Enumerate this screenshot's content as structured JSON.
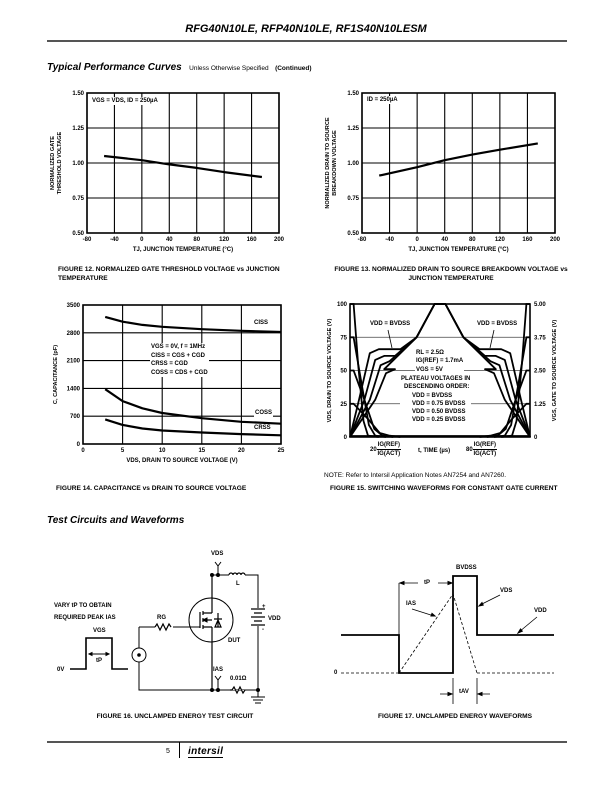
{
  "header": {
    "title": "RFG40N10LE, RFP40N10LE, RF1S40N10LESM"
  },
  "section1": {
    "title": "Typical Performance Curves",
    "subtitle": "Unless Otherwise Specified",
    "continued": "(Continued)"
  },
  "chart_data": [
    {
      "type": "line",
      "caption": "FIGURE 12.  NORMALIZED GATE THRESHOLD VOLTAGE vs JUNCTION TEMPERATURE",
      "xlabel": "TJ, JUNCTION TEMPERATURE (°C)",
      "ylabel_lines": [
        "NORMALIZED GATE",
        "THRESHOLD VOLTAGE"
      ],
      "xlim": [
        -80,
        200
      ],
      "ylim": [
        0.5,
        1.5
      ],
      "xticks": [
        -80,
        -40,
        0,
        40,
        80,
        120,
        160,
        200
      ],
      "yticks": [
        0.5,
        0.75,
        1.0,
        1.25,
        1.5
      ],
      "ytick_labels": [
        "0.50",
        "0.75",
        "1.00",
        "1.25",
        "1.50"
      ],
      "grid": true,
      "annotation": "VGS = VDS, ID = 250µA",
      "series": [
        {
          "x": [
            -55,
            0,
            40,
            80,
            120,
            175
          ],
          "y": [
            1.05,
            1.02,
            0.99,
            0.965,
            0.935,
            0.9
          ]
        }
      ]
    },
    {
      "type": "line",
      "caption": "FIGURE 13.  NORMALIZED DRAIN TO SOURCE BREAKDOWN VOLTAGE vs JUNCTION TEMPERATURE",
      "xlabel": "TJ, JUNCTION TEMPERATURE (°C)",
      "ylabel_lines": [
        "NORMALIZED DRAIN TO SOURCE",
        "BREAKDOWN VOLTAGE"
      ],
      "xlim": [
        -80,
        200
      ],
      "ylim": [
        0.5,
        1.5
      ],
      "xticks": [
        -80,
        -40,
        0,
        40,
        80,
        120,
        160,
        200
      ],
      "yticks": [
        0.5,
        0.75,
        1.0,
        1.25,
        1.5
      ],
      "ytick_labels": [
        "0.50",
        "0.75",
        "1.00",
        "1.25",
        "1.50"
      ],
      "grid": true,
      "annotation": "ID = 250µA",
      "series": [
        {
          "x": [
            -55,
            0,
            40,
            80,
            120,
            175
          ],
          "y": [
            0.91,
            0.97,
            1.02,
            1.06,
            1.095,
            1.14
          ]
        }
      ]
    },
    {
      "type": "line",
      "caption": "FIGURE 14.  CAPACITANCE vs DRAIN TO SOURCE VOLTAGE",
      "xlabel": "VDS, DRAIN TO SOURCE VOLTAGE (V)",
      "ylabel_lines": [
        "C, CAPACITANCE (pF)"
      ],
      "xlim": [
        0,
        25
      ],
      "ylim": [
        0,
        3500
      ],
      "xticks": [
        0,
        5,
        10,
        15,
        20,
        25
      ],
      "yticks": [
        0,
        700,
        1400,
        2100,
        2800,
        3500
      ],
      "ytick_labels": [
        "0",
        "700",
        "1400",
        "2100",
        "2800",
        "3500"
      ],
      "grid": true,
      "annotation_lines": [
        "VGS = 0V, f = 1MHz",
        "CISS = CGS + CGD",
        "CRSS = CGD",
        "COSS = CDS + CGD"
      ],
      "series": [
        {
          "name": "CISS",
          "x": [
            2.8,
            5,
            7.5,
            10,
            15,
            20,
            25
          ],
          "y": [
            3200,
            3080,
            3000,
            2950,
            2890,
            2850,
            2820
          ]
        },
        {
          "name": "COSS",
          "x": [
            2.8,
            5,
            7.5,
            10,
            15,
            20,
            25
          ],
          "y": [
            1380,
            1080,
            900,
            780,
            650,
            560,
            510
          ]
        },
        {
          "name": "CRSS",
          "x": [
            2.8,
            5,
            7.5,
            10,
            15,
            20,
            25
          ],
          "y": [
            620,
            480,
            390,
            340,
            290,
            250,
            220
          ]
        }
      ]
    },
    {
      "type": "line",
      "caption": "FIGURE 15.  SWITCHING WAVEFORMS FOR CONSTANT GATE CURRENT",
      "note": "NOTE:  Refer to Intersil Application Notes AN7254 and AN7260.",
      "xlabel": "t, TIME (µs)",
      "xtick_marks": [
        {
          "value": "20",
          "num": "IG(REF)",
          "den": "IG(ACT)"
        },
        {
          "value": "80",
          "num": "IG(REF)",
          "den": "IG(ACT)"
        }
      ],
      "ylabel": "VDS, DRAIN TO SOURCE VOLTAGE (V)",
      "y2label": "VGS, GATE TO SOURCE VOLTAGE (V)",
      "xlim": [
        0,
        100
      ],
      "ylim": [
        0,
        100
      ],
      "y2lim": [
        0,
        5
      ],
      "yticks": [
        0,
        25,
        50,
        75,
        100
      ],
      "ytick_labels": [
        "0",
        "25",
        "50",
        "75",
        "100"
      ],
      "y2tick_labels": [
        "0",
        "1.25",
        "2.50",
        "3.75",
        "5.00"
      ],
      "grid": false,
      "annotation_vdd": "VDD = BVDSS",
      "annotation_lines": [
        "RL = 2.5Ω",
        "IG(REF) = 1.7mA",
        "VGS = 5V"
      ],
      "legend_title_lines": [
        "PLATEAU VOLTAGES IN",
        "DESCENDING ORDER:"
      ],
      "legend": [
        "VDD = BVDSS",
        "VDD = 0.75 BVDSS",
        "VDD = 0.50 BVDSS",
        "VDD = 0.25 BVDSS"
      ],
      "vgs_plateaus": [
        3.3,
        3.05,
        2.85,
        2.55
      ],
      "vds_levels": [
        100,
        75,
        50,
        25
      ]
    }
  ],
  "section2": {
    "title": "Test Circuits and Waveforms"
  },
  "figure16": {
    "caption": "FIGURE 16.  UNCLAMPED ENERGY TEST CIRCUIT",
    "vary_lines": [
      "VARY tP TO OBTAIN",
      "REQUIRED PEAK IAS"
    ],
    "vgs": "VGS",
    "tp": "tP",
    "zero": "0V",
    "rg": "RG",
    "vds": "VDS",
    "l": "L",
    "vdd": "VDD",
    "plus": "+",
    "minus": "-",
    "dut": "DUT",
    "ias": "IAS",
    "rsense": "0.01Ω"
  },
  "figure17": {
    "caption": "FIGURE 17.  UNCLAMPED ENERGY WAVEFORMS",
    "bvdss": "BVDSS",
    "tp": "tP",
    "vds": "VDS",
    "vdd": "VDD",
    "ias": "IAS",
    "zero": "0",
    "tav": "tAV"
  },
  "footer": {
    "page": "5",
    "logo": "intersil"
  }
}
